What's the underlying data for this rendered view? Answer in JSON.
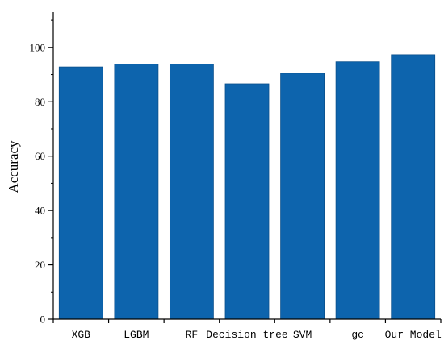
{
  "chart_data": {
    "type": "bar",
    "title": "",
    "xlabel": "",
    "ylabel": "Accuracy",
    "categories": [
      "XGB",
      "LGBM",
      "RF",
      "Decision tree",
      "SVM",
      "gc",
      "Our Model"
    ],
    "values": [
      92.8,
      93.9,
      93.9,
      86.6,
      90.5,
      94.7,
      97.3
    ],
    "ylim": [
      0,
      113
    ],
    "yticks": [
      0,
      20,
      40,
      60,
      80,
      100
    ],
    "yticks_minor": [
      10,
      30,
      50,
      70,
      90,
      110
    ],
    "grid": false,
    "legend": "none",
    "colors": {
      "bar": "#0d64ad",
      "bar_edge": "#0a4f8c",
      "axis": "#000000"
    }
  }
}
